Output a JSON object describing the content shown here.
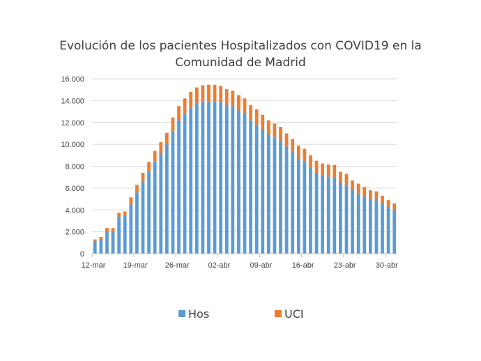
{
  "chart_data": {
    "type": "bar",
    "stacked": true,
    "title": "Evolución de los pacientes Hospitalizados con COVID19 en la Comunidad de Madrid",
    "title_lines": [
      "Evolución de los pacientes Hospitalizados con COVID19 en la",
      "Comunidad de Madrid"
    ],
    "xlabel": "",
    "ylabel": "",
    "ylim": [
      0,
      16000
    ],
    "y_ticks": [
      0,
      2000,
      4000,
      6000,
      8000,
      10000,
      12000,
      14000,
      16000
    ],
    "y_tick_labels": [
      "0",
      "2.000",
      "4.000",
      "6.000",
      "8.000",
      "10.000",
      "12.000",
      "14.000",
      "16.000"
    ],
    "x_tick_labels": [
      "12-mar",
      "19-mar",
      "26-mar",
      "02-abr",
      "09-abr",
      "16-abr",
      "23-abr",
      "30-abr"
    ],
    "grid": true,
    "legend": "bottom",
    "categories": [
      "12-mar",
      "13-mar",
      "14-mar",
      "15-mar",
      "16-mar",
      "17-mar",
      "18-mar",
      "19-mar",
      "20-mar",
      "21-mar",
      "22-mar",
      "23-mar",
      "24-mar",
      "25-mar",
      "26-mar",
      "27-mar",
      "28-mar",
      "29-mar",
      "30-mar",
      "31-mar",
      "01-abr",
      "02-abr",
      "03-abr",
      "04-abr",
      "05-abr",
      "06-abr",
      "07-abr",
      "08-abr",
      "09-abr",
      "10-abr",
      "11-abr",
      "12-abr",
      "13-abr",
      "14-abr",
      "15-abr",
      "16-abr",
      "17-abr",
      "18-abr",
      "19-abr",
      "20-abr",
      "21-abr",
      "22-abr",
      "23-abr",
      "24-abr",
      "25-abr",
      "26-abr",
      "27-abr",
      "28-abr",
      "29-abr",
      "30-abr",
      "01-may"
    ],
    "series": [
      {
        "name": "Hos",
        "color": "#5b9bd5",
        "values": [
          1150,
          1350,
          2050,
          2050,
          3400,
          3500,
          4500,
          5600,
          6600,
          7500,
          8400,
          9200,
          10000,
          11200,
          12200,
          12800,
          13300,
          13700,
          13900,
          13950,
          13950,
          13850,
          13600,
          13500,
          13100,
          12800,
          12200,
          11800,
          11400,
          10900,
          10600,
          10300,
          9800,
          9300,
          8700,
          8400,
          7900,
          7400,
          7150,
          7050,
          7000,
          6500,
          6300,
          5800,
          5500,
          5200,
          5000,
          4900,
          4600,
          4300,
          4000
        ]
      },
      {
        "name": "UCI",
        "color": "#ed7d31",
        "values": [
          150,
          180,
          300,
          300,
          350,
          350,
          650,
          700,
          800,
          900,
          1000,
          1000,
          1050,
          1250,
          1300,
          1400,
          1500,
          1500,
          1500,
          1500,
          1500,
          1500,
          1450,
          1400,
          1400,
          1400,
          1400,
          1400,
          1300,
          1300,
          1300,
          1300,
          1200,
          1200,
          1200,
          1200,
          1100,
          1100,
          1100,
          1100,
          1100,
          1000,
          1000,
          900,
          900,
          900,
          800,
          800,
          700,
          600,
          600
        ]
      }
    ]
  }
}
